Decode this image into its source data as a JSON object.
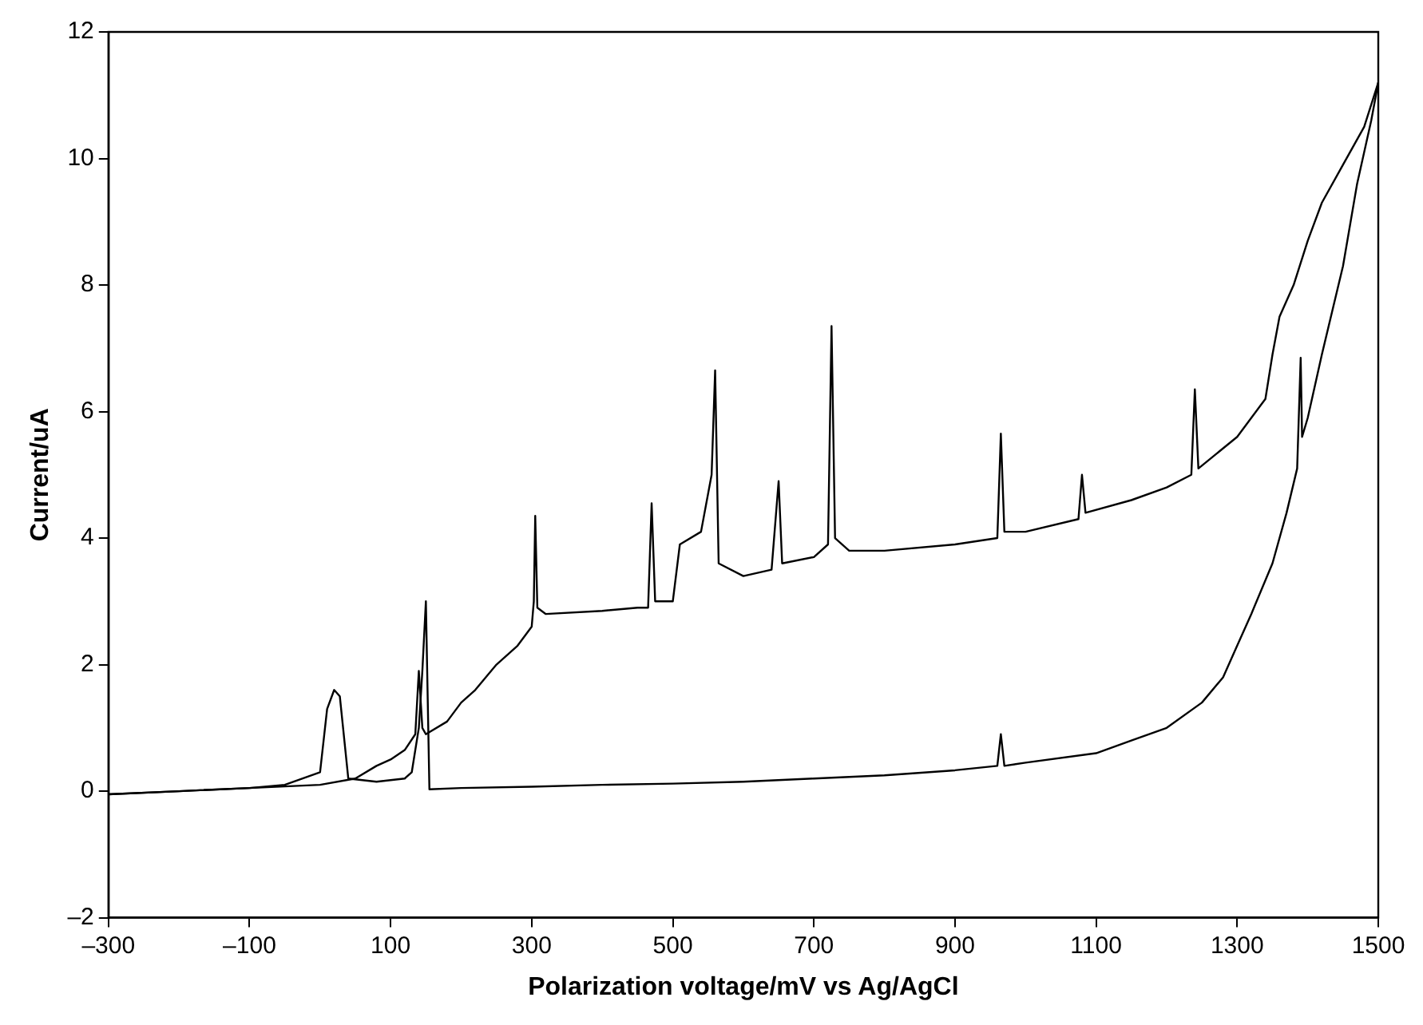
{
  "chart_data": {
    "type": "line",
    "xlabel": "Polarization voltage/mV vs Ag/AgCl",
    "ylabel": "Current/uA",
    "xlim": [
      -300,
      1500
    ],
    "xticks": [
      {
        "value": -300,
        "label": "–300"
      },
      {
        "value": -100,
        "label": "–100"
      },
      100,
      300,
      500,
      700,
      900,
      1100,
      1300,
      1500
    ],
    "ylim": [
      -2,
      12
    ],
    "yticks": [
      {
        "value": -2,
        "label": "–2"
      },
      0,
      2,
      4,
      6,
      8,
      10,
      12
    ],
    "grid": false,
    "legend": false,
    "marker": "none",
    "line_style": "solid",
    "series": [
      {
        "color": "#000000",
        "x": [
          -300,
          -200,
          -100,
          0,
          50,
          80,
          100,
          120,
          135,
          140,
          145,
          150,
          180,
          200,
          220,
          250,
          280,
          300,
          303,
          305,
          308,
          320,
          400,
          450,
          465,
          470,
          475,
          500,
          510,
          540,
          555,
          560,
          565,
          600,
          640,
          650,
          655,
          700,
          720,
          725,
          730,
          750,
          800,
          900,
          960,
          965,
          970,
          1000,
          1075,
          1080,
          1085,
          1150,
          1200,
          1235,
          1240,
          1245,
          1300,
          1340,
          1350,
          1360,
          1380,
          1400,
          1420,
          1450,
          1480,
          1500
        ],
        "values": [
          -0.05,
          0,
          0.05,
          0.1,
          0.2,
          0.4,
          0.5,
          0.65,
          0.9,
          1.9,
          1.0,
          0.9,
          1.1,
          1.4,
          1.6,
          2.0,
          2.3,
          2.6,
          3.0,
          4.35,
          2.9,
          2.8,
          2.85,
          2.9,
          2.9,
          4.55,
          3.0,
          3.0,
          3.9,
          4.1,
          5.0,
          6.65,
          3.6,
          3.4,
          3.5,
          4.9,
          3.6,
          3.7,
          3.9,
          7.35,
          4.0,
          3.8,
          3.8,
          3.9,
          4.0,
          5.65,
          4.1,
          4.1,
          4.3,
          5.0,
          4.4,
          4.6,
          4.8,
          5.0,
          6.35,
          5.1,
          5.6,
          6.2,
          6.9,
          7.5,
          8.0,
          8.7,
          9.3,
          9.9,
          10.5,
          11.2
        ]
      },
      {
        "color": "#000000",
        "x": [
          -300,
          -200,
          -100,
          -50,
          0,
          10,
          20,
          28,
          40,
          80,
          120,
          130,
          140,
          145,
          150,
          155,
          200,
          300,
          400,
          500,
          600,
          700,
          800,
          900,
          960,
          965,
          970,
          1000,
          1100,
          1150,
          1200,
          1250,
          1280,
          1300,
          1320,
          1350,
          1370,
          1385,
          1390,
          1392,
          1400,
          1420,
          1450,
          1470,
          1490,
          1500
        ],
        "values": [
          -0.05,
          0,
          0.05,
          0.1,
          0.3,
          1.3,
          1.6,
          1.5,
          0.2,
          0.15,
          0.2,
          0.3,
          1.0,
          1.9,
          3.0,
          0.03,
          0.05,
          0.07,
          0.1,
          0.12,
          0.15,
          0.2,
          0.25,
          0.33,
          0.4,
          0.9,
          0.4,
          0.45,
          0.6,
          0.8,
          1.0,
          1.4,
          1.8,
          2.3,
          2.8,
          3.6,
          4.4,
          5.1,
          6.85,
          5.6,
          5.9,
          6.9,
          8.3,
          9.6,
          10.6,
          11.2
        ]
      }
    ]
  }
}
